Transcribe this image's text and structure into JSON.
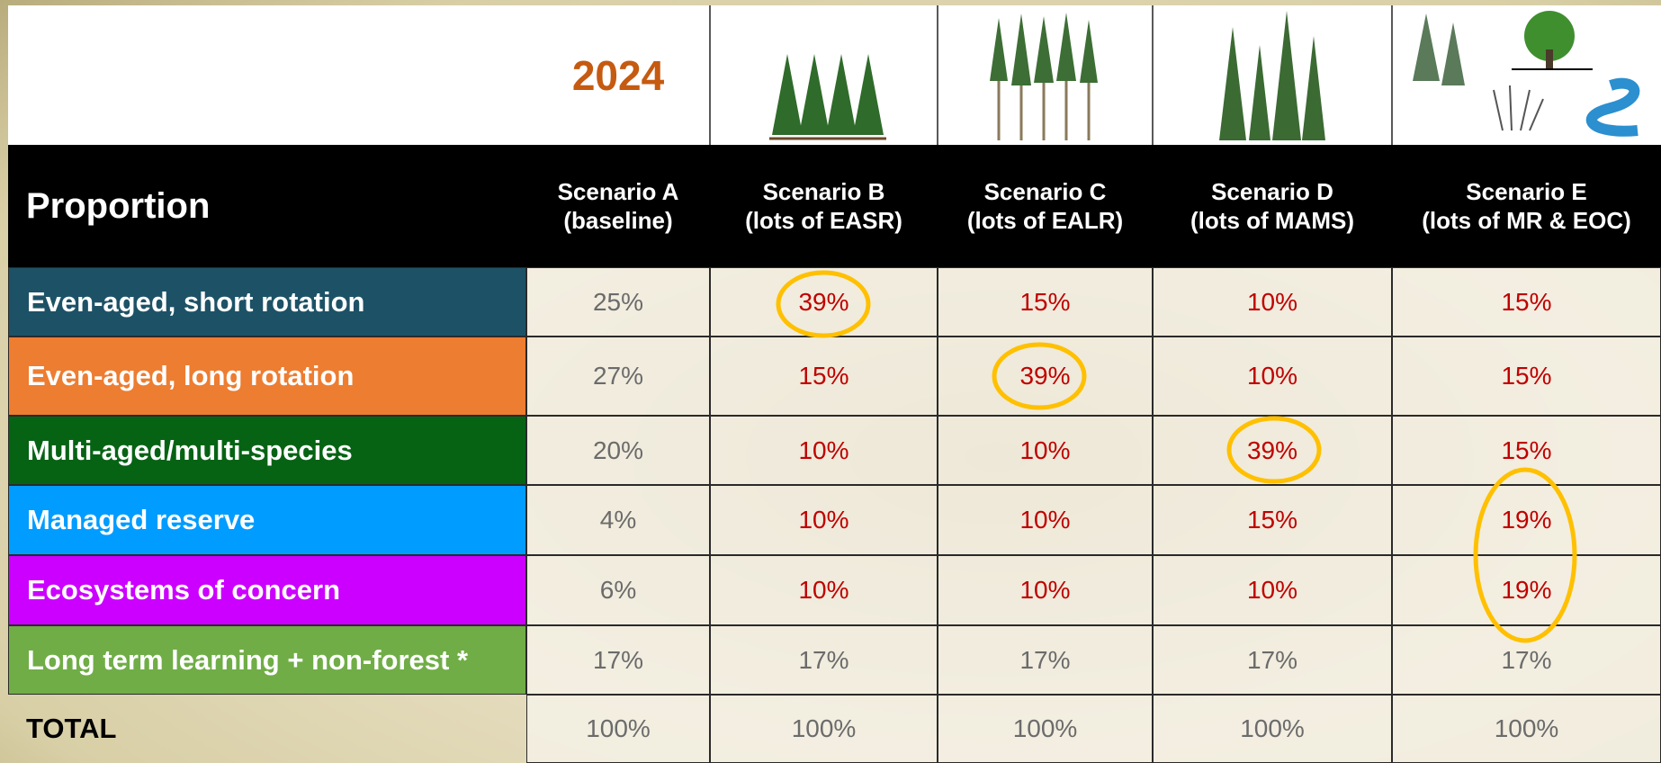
{
  "header": {
    "year": "2024",
    "title": "Proportion",
    "scenarios": [
      {
        "name": "Scenario A",
        "desc": "(baseline)"
      },
      {
        "name": "Scenario B",
        "desc": "(lots of EASR)"
      },
      {
        "name": "Scenario C",
        "desc": "(lots of EALR)"
      },
      {
        "name": "Scenario D",
        "desc": "(lots of  MAMS)"
      },
      {
        "name": "Scenario E",
        "desc": "(lots of MR & EOC)"
      }
    ]
  },
  "table": {
    "rows": [
      {
        "label": "Even-aged, short rotation",
        "color": "#1d5266",
        "values": [
          "25%",
          "39%",
          "15%",
          "10%",
          "15%"
        ]
      },
      {
        "label": "Even-aged, long rotation",
        "color": "#ed7d31",
        "values": [
          "27%",
          "15%",
          "39%",
          "10%",
          "15%"
        ]
      },
      {
        "label": "Multi-aged/multi-species",
        "color": "#066314",
        "values": [
          "20%",
          "10%",
          "10%",
          "39%",
          "15%"
        ]
      },
      {
        "label": "Managed reserve",
        "color": "#009cff",
        "values": [
          "4%",
          "10%",
          "10%",
          "15%",
          "19%"
        ]
      },
      {
        "label": "Ecosystems of concern",
        "color": "#cc00ff",
        "values": [
          "6%",
          "10%",
          "10%",
          "10%",
          "19%"
        ]
      },
      {
        "label": "Long term learning + non-forest *",
        "color": "#70ad47",
        "values": [
          "17%",
          "17%",
          "17%",
          "17%",
          "17%"
        ]
      }
    ],
    "total": {
      "label": "TOTAL",
      "values": [
        "100%",
        "100%",
        "100%",
        "100%",
        "100%"
      ]
    }
  }
}
